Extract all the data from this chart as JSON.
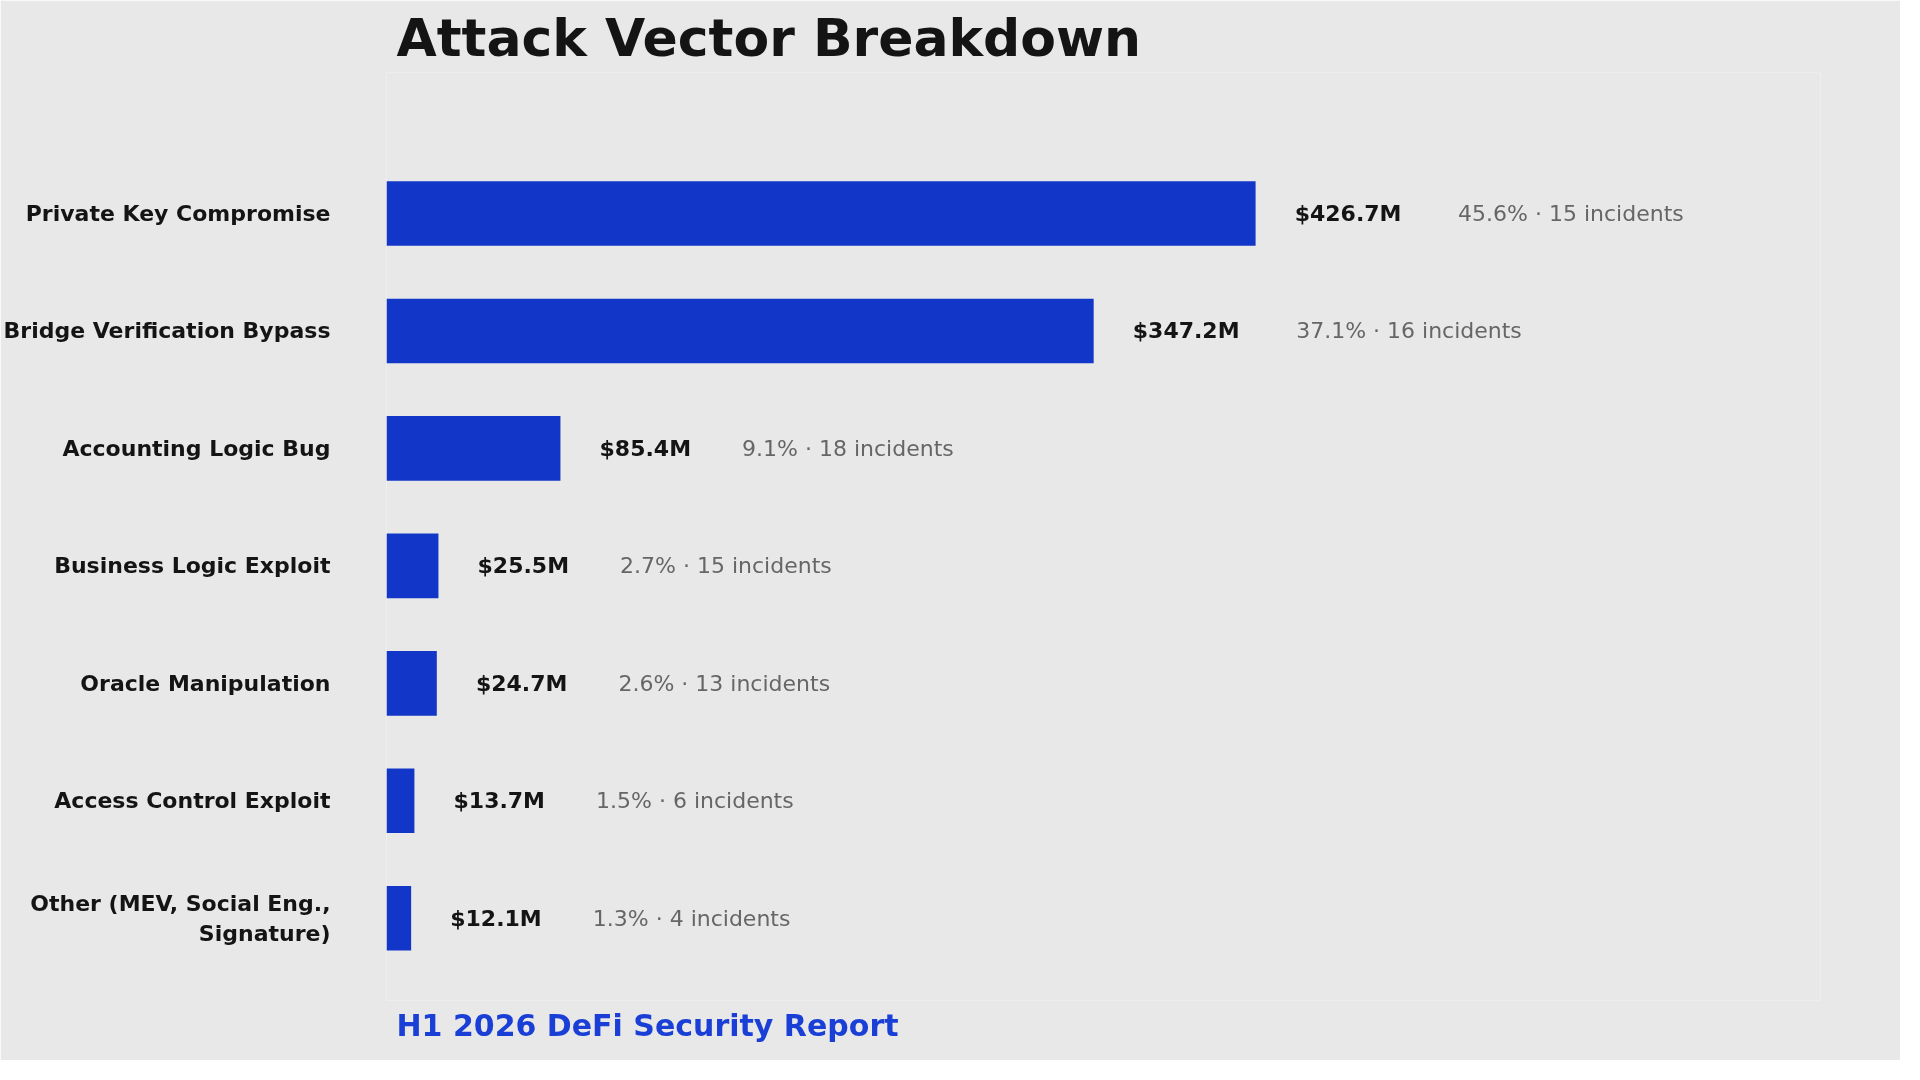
{
  "chart_data": {
    "type": "bar",
    "orientation": "horizontal",
    "title": "Attack Vector Breakdown",
    "categories": [
      "Private Key Compromise",
      "Bridge Verification Bypass",
      "Accounting Logic Bug",
      "Business Logic Exploit",
      "Oracle Manipulation",
      "Access Control Exploit",
      "Other (MEV, Social Eng.,\nSignature)"
    ],
    "values": [
      426.7,
      347.2,
      85.4,
      25.5,
      24.7,
      13.7,
      12.1
    ],
    "value_labels": [
      "$426.7M",
      "$347.2M",
      "$85.4M",
      "$25.5M",
      "$24.7M",
      "$13.7M",
      "$12.1M"
    ],
    "color": "#1237c8",
    "tick_labels": "y",
    "annotations": [
      "45.6% · 15 incidents",
      "37.1% · 16 incidents",
      "9.1% · 18 incidents",
      "2.7% · 15 incidents",
      "2.6% · 13 incidents",
      "1.5% · 6 incidents",
      "1.3% · 4 incidents",
      "H1 2026 DeFi Security Report"
    ]
  }
}
